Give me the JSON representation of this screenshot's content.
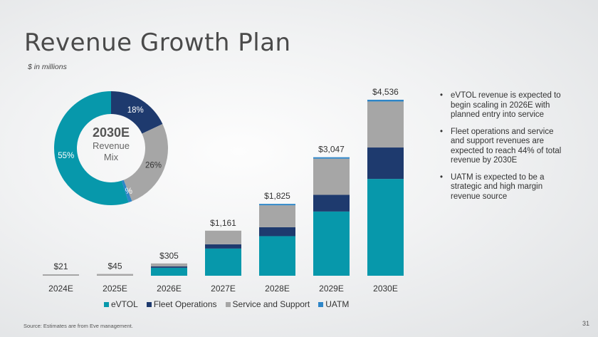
{
  "title": "Revenue Growth Plan",
  "subtitle": "$ in millions",
  "colors": {
    "evtol": "#0798ab",
    "fleet": "#1e3a6e",
    "service": "#a6a6a6",
    "uatm": "#2e86c8"
  },
  "chart_data": [
    {
      "type": "bar",
      "stacked": true,
      "categories": [
        "2024E",
        "2025E",
        "2026E",
        "2027E",
        "2028E",
        "2029E",
        "2030E"
      ],
      "totals": [
        21,
        45,
        305,
        1161,
        1825,
        3047,
        4536
      ],
      "total_labels": [
        "$21",
        "$45",
        "$305",
        "$1,161",
        "$1,825",
        "$3,047",
        "$4,536"
      ],
      "series": [
        {
          "name": "eVTOL",
          "values": [
            0,
            0,
            205,
            700,
            1020,
            1655,
            2495
          ]
        },
        {
          "name": "Fleet Operations",
          "values": [
            0,
            0,
            25,
            110,
            230,
            430,
            810
          ]
        },
        {
          "name": "Service and Support",
          "values": [
            21,
            45,
            75,
            351,
            565,
            932,
            1186
          ]
        },
        {
          "name": "UATM",
          "values": [
            0,
            0,
            0,
            0,
            10,
            30,
            45
          ]
        }
      ],
      "ylim": [
        0,
        4536
      ],
      "grid": false,
      "legend": "bottom"
    },
    {
      "type": "pie",
      "donut": true,
      "center_title": "2030E",
      "center_label_line1": "Revenue",
      "center_label_line2": "Mix",
      "slices": [
        {
          "name": "Fleet Operations",
          "value": 18,
          "label": "18%"
        },
        {
          "name": "Service and Support",
          "value": 26,
          "label": "26%"
        },
        {
          "name": "UATM",
          "value": 1,
          "label": "1%"
        },
        {
          "name": "eVTOL",
          "value": 55,
          "label": "55%"
        }
      ]
    }
  ],
  "bullets": [
    "eVTOL revenue is expected to begin scaling in 2026E with planned entry into service",
    "Fleet operations and service and support revenues are expected to reach 44% of total revenue by 2030E",
    "UATM is expected to be a strategic and high margin revenue source"
  ],
  "legend": [
    "eVTOL",
    "Fleet Operations",
    "Service and Support",
    "UATM"
  ],
  "source": "Source: Estimates are from Eve management.",
  "page_number": "31"
}
